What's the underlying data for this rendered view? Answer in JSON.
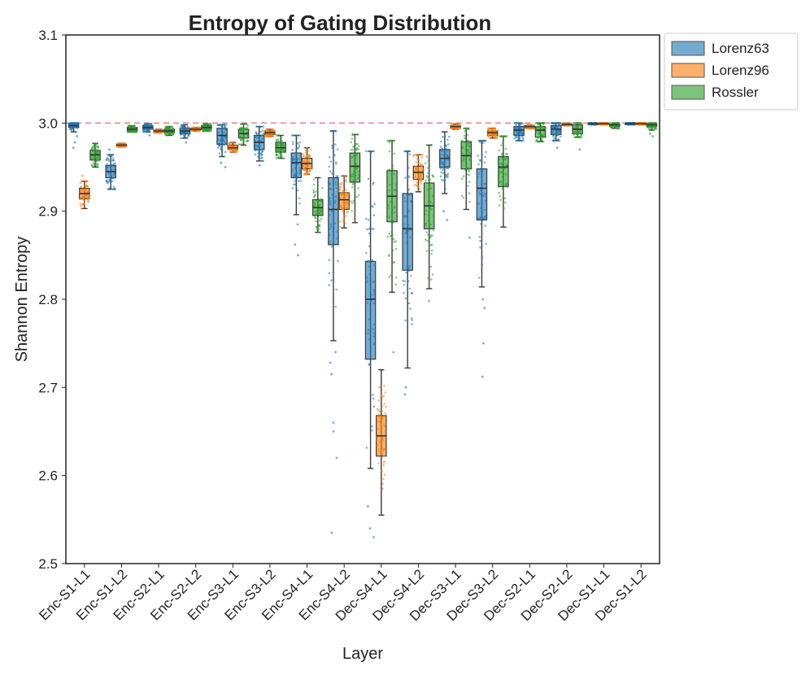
{
  "chart_data": {
    "type": "box",
    "title": "Entropy of Gating Distribution",
    "xlabel": "Layer",
    "ylabel": "Shannon Entropy",
    "ylim": [
      2.5,
      3.1
    ],
    "yticks": [
      "2.5",
      "2.6",
      "2.7",
      "2.8",
      "2.9",
      "3.0",
      "3.1"
    ],
    "reference_line": 3.0,
    "legend_position": "outside top-right",
    "categories": [
      "Enc-S1-L1",
      "Enc-S1-L2",
      "Enc-S2-L1",
      "Enc-S2-L2",
      "Enc-S3-L1",
      "Enc-S3-L2",
      "Enc-S4-L1",
      "Enc-S4-L2",
      "Dec-S4-L1",
      "Dec-S4-L2",
      "Dec-S3-L1",
      "Dec-S3-L2",
      "Dec-S2-L1",
      "Dec-S2-L2",
      "Dec-S1-L1",
      "Dec-S1-L2"
    ],
    "series": [
      {
        "name": "Lorenz63",
        "color": "#1f77b4",
        "boxes": [
          {
            "wlo": 2.99,
            "q1": 2.995,
            "med": 2.997,
            "q3": 2.999,
            "whi": 3.0,
            "fliers": [
              2.985,
              2.978,
              2.972
            ]
          },
          {
            "wlo": 2.925,
            "q1": 2.938,
            "med": 2.945,
            "q3": 2.952,
            "whi": 2.964,
            "fliers": [
              2.97
            ]
          },
          {
            "wlo": 2.99,
            "q1": 2.993,
            "med": 2.995,
            "q3": 2.997,
            "whi": 2.999,
            "fliers": [
              2.986
            ]
          },
          {
            "wlo": 2.983,
            "q1": 2.988,
            "med": 2.991,
            "q3": 2.994,
            "whi": 2.998,
            "fliers": [
              2.978
            ]
          },
          {
            "wlo": 2.962,
            "q1": 2.976,
            "med": 2.986,
            "q3": 2.994,
            "whi": 2.998,
            "fliers": [
              2.95,
              2.955
            ]
          },
          {
            "wlo": 2.957,
            "q1": 2.97,
            "med": 2.978,
            "q3": 2.986,
            "whi": 2.996,
            "fliers": [
              2.952
            ]
          },
          {
            "wlo": 2.896,
            "q1": 2.938,
            "med": 2.955,
            "q3": 2.966,
            "whi": 2.986,
            "fliers": [
              2.85,
              2.862,
              2.885
            ]
          },
          {
            "wlo": 2.753,
            "q1": 2.862,
            "med": 2.902,
            "q3": 2.938,
            "whi": 2.991,
            "fliers": [
              2.715,
              2.66,
              2.65,
              2.62,
              2.535,
              2.74,
              2.728
            ]
          },
          {
            "wlo": 2.608,
            "q1": 2.732,
            "med": 2.8,
            "q3": 2.843,
            "whi": 2.968,
            "fliers": [
              2.565,
              2.54,
              2.53
            ]
          },
          {
            "wlo": 2.722,
            "q1": 2.833,
            "med": 2.88,
            "q3": 2.92,
            "whi": 2.968,
            "fliers": [
              2.7,
              2.692
            ]
          },
          {
            "wlo": 2.92,
            "q1": 2.95,
            "med": 2.96,
            "q3": 2.97,
            "whi": 2.99,
            "fliers": [
              2.9,
              2.89
            ]
          },
          {
            "wlo": 2.814,
            "q1": 2.89,
            "med": 2.926,
            "q3": 2.948,
            "whi": 2.98,
            "fliers": [
              2.75,
              2.712,
              2.79,
              2.8
            ]
          },
          {
            "wlo": 2.98,
            "q1": 2.986,
            "med": 2.992,
            "q3": 2.996,
            "whi": 3.0,
            "fliers": []
          },
          {
            "wlo": 2.98,
            "q1": 2.987,
            "med": 2.993,
            "q3": 2.997,
            "whi": 3.0,
            "fliers": [
              2.972
            ]
          },
          {
            "wlo": 2.998,
            "q1": 2.999,
            "med": 2.9995,
            "q3": 3.0,
            "whi": 3.0,
            "fliers": []
          },
          {
            "wlo": 2.998,
            "q1": 2.999,
            "med": 2.9995,
            "q3": 3.0,
            "whi": 3.0,
            "fliers": []
          }
        ]
      },
      {
        "name": "Lorenz96",
        "color": "#ff7f0e",
        "boxes": [
          {
            "wlo": 2.903,
            "q1": 2.914,
            "med": 2.92,
            "q3": 2.926,
            "whi": 2.934,
            "fliers": [
              2.94
            ]
          },
          {
            "wlo": 2.973,
            "q1": 2.974,
            "med": 2.975,
            "q3": 2.976,
            "whi": 2.977,
            "fliers": []
          },
          {
            "wlo": 2.989,
            "q1": 2.99,
            "med": 2.991,
            "q3": 2.992,
            "whi": 2.993,
            "fliers": []
          },
          {
            "wlo": 2.991,
            "q1": 2.992,
            "med": 2.993,
            "q3": 2.994,
            "whi": 2.995,
            "fliers": []
          },
          {
            "wlo": 2.967,
            "q1": 2.97,
            "med": 2.972,
            "q3": 2.975,
            "whi": 2.978,
            "fliers": []
          },
          {
            "wlo": 2.985,
            "q1": 2.987,
            "med": 2.989,
            "q3": 2.991,
            "whi": 2.993,
            "fliers": []
          },
          {
            "wlo": 2.942,
            "q1": 2.948,
            "med": 2.954,
            "q3": 2.96,
            "whi": 2.972,
            "fliers": []
          },
          {
            "wlo": 2.881,
            "q1": 2.902,
            "med": 2.913,
            "q3": 2.921,
            "whi": 2.94,
            "fliers": []
          },
          {
            "wlo": 2.555,
            "q1": 2.622,
            "med": 2.645,
            "q3": 2.668,
            "whi": 2.72,
            "fliers": [
              2.585
            ]
          },
          {
            "wlo": 2.922,
            "q1": 2.936,
            "med": 2.944,
            "q3": 2.951,
            "whi": 2.964,
            "fliers": []
          },
          {
            "wlo": 2.993,
            "q1": 2.995,
            "med": 2.996,
            "q3": 2.997,
            "whi": 2.999,
            "fliers": []
          },
          {
            "wlo": 2.983,
            "q1": 2.986,
            "med": 2.989,
            "q3": 2.991,
            "whi": 2.994,
            "fliers": []
          },
          {
            "wlo": 2.994,
            "q1": 2.995,
            "med": 2.996,
            "q3": 2.997,
            "whi": 2.998,
            "fliers": []
          },
          {
            "wlo": 2.997,
            "q1": 2.998,
            "med": 2.9985,
            "q3": 2.999,
            "whi": 3.0,
            "fliers": []
          },
          {
            "wlo": 2.998,
            "q1": 2.999,
            "med": 2.9995,
            "q3": 3.0,
            "whi": 3.0,
            "fliers": []
          },
          {
            "wlo": 2.998,
            "q1": 2.999,
            "med": 2.9995,
            "q3": 3.0,
            "whi": 3.0,
            "fliers": []
          }
        ]
      },
      {
        "name": "Rossler",
        "color": "#2ca02c",
        "boxes": [
          {
            "wlo": 2.95,
            "q1": 2.958,
            "med": 2.964,
            "q3": 2.969,
            "whi": 2.977,
            "fliers": []
          },
          {
            "wlo": 2.99,
            "q1": 2.991,
            "med": 2.993,
            "q3": 2.995,
            "whi": 2.997,
            "fliers": []
          },
          {
            "wlo": 2.986,
            "q1": 2.989,
            "med": 2.991,
            "q3": 2.993,
            "whi": 2.996,
            "fliers": []
          },
          {
            "wlo": 2.991,
            "q1": 2.993,
            "med": 2.995,
            "q3": 2.997,
            "whi": 2.999,
            "fliers": []
          },
          {
            "wlo": 2.975,
            "q1": 2.983,
            "med": 2.988,
            "q3": 2.993,
            "whi": 2.999,
            "fliers": []
          },
          {
            "wlo": 2.96,
            "q1": 2.967,
            "med": 2.972,
            "q3": 2.978,
            "whi": 2.986,
            "fliers": []
          },
          {
            "wlo": 2.876,
            "q1": 2.895,
            "med": 2.904,
            "q3": 2.913,
            "whi": 2.938,
            "fliers": []
          },
          {
            "wlo": 2.887,
            "q1": 2.933,
            "med": 2.951,
            "q3": 2.966,
            "whi": 2.987,
            "fliers": []
          },
          {
            "wlo": 2.808,
            "q1": 2.888,
            "med": 2.917,
            "q3": 2.946,
            "whi": 2.98,
            "fliers": [
              2.74
            ]
          },
          {
            "wlo": 2.812,
            "q1": 2.88,
            "med": 2.906,
            "q3": 2.932,
            "whi": 2.975,
            "fliers": [
              2.798
            ]
          },
          {
            "wlo": 2.902,
            "q1": 2.948,
            "med": 2.963,
            "q3": 2.979,
            "whi": 2.994,
            "fliers": [
              2.87
            ]
          },
          {
            "wlo": 2.882,
            "q1": 2.928,
            "med": 2.95,
            "q3": 2.962,
            "whi": 2.985,
            "fliers": []
          },
          {
            "wlo": 2.979,
            "q1": 2.984,
            "med": 2.992,
            "q3": 2.996,
            "whi": 3.0,
            "fliers": []
          },
          {
            "wlo": 2.984,
            "q1": 2.988,
            "med": 2.993,
            "q3": 2.998,
            "whi": 3.0,
            "fliers": [
              2.97
            ]
          },
          {
            "wlo": 2.994,
            "q1": 2.996,
            "med": 2.998,
            "q3": 2.999,
            "whi": 3.0,
            "fliers": []
          },
          {
            "wlo": 2.992,
            "q1": 2.996,
            "med": 2.998,
            "q3": 2.999,
            "whi": 3.0,
            "fliers": [
              2.985,
              2.988
            ]
          }
        ]
      }
    ]
  }
}
